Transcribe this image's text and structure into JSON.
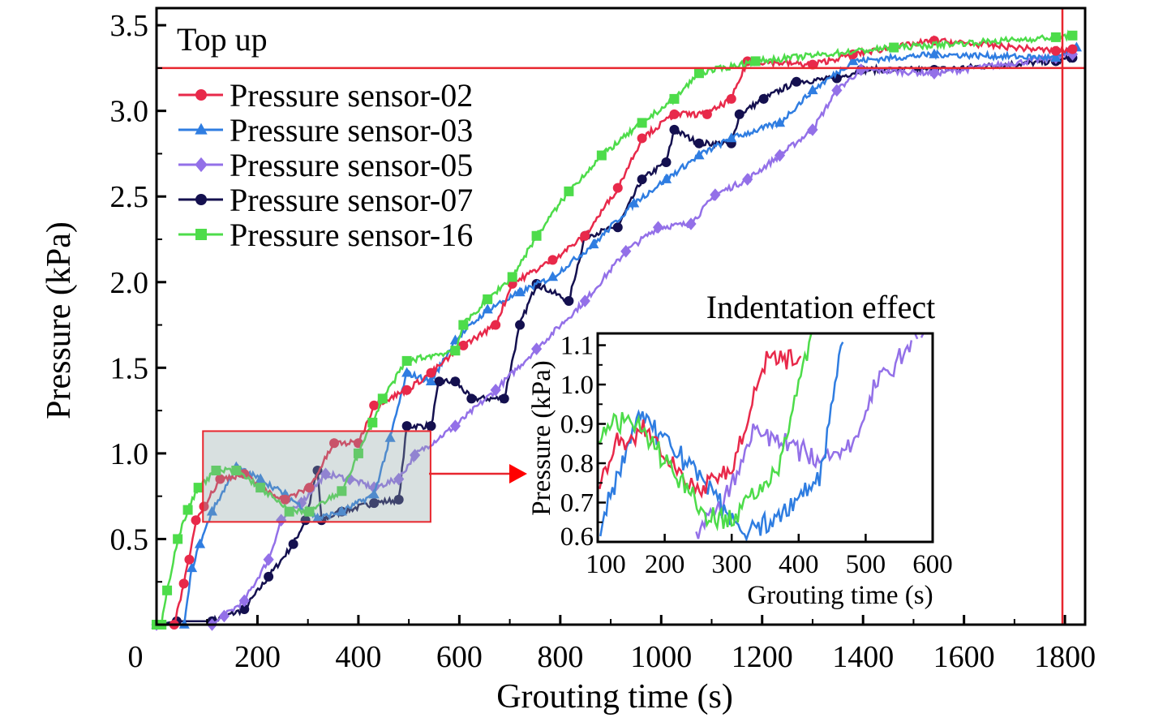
{
  "chart_data": {
    "type": "line",
    "xlabel": "Grouting time (s)",
    "ylabel": "Pressure (kPa)",
    "xlim": [
      0,
      1840
    ],
    "ylim": [
      0,
      3.6
    ],
    "xticks": [
      0,
      200,
      400,
      600,
      800,
      1000,
      1200,
      1400,
      1600,
      1800
    ],
    "yticks": [
      0.5,
      1.0,
      1.5,
      2.0,
      2.5,
      3.0,
      3.5
    ],
    "ytick_labels": [
      "0.5",
      "1.0",
      "1.5",
      "2.0",
      "2.5",
      "3.0",
      "3.5"
    ],
    "grid": false,
    "legend_placement": "top-left",
    "annotations": {
      "top_up_label": "Top up",
      "top_up_pressure": 3.25,
      "top_up_time": 1795,
      "reference_line_color": "#e8262e",
      "highlight_region": {
        "x": [
          92,
          543
        ],
        "y": [
          0.6,
          1.13
        ]
      }
    },
    "series": [
      {
        "name": "Pressure sensor-02",
        "color": "#e8294a",
        "marker": "circle",
        "x": [
          0,
          35,
          54,
          65,
          78,
          94,
          126,
          174,
          206,
          255,
          303,
          352,
          400,
          431,
          496,
          544,
          608,
          672,
          705,
          785,
          849,
          914,
          962,
          1026,
          1091,
          1139,
          1171,
          1300,
          1380,
          1541,
          1782,
          1815
        ],
        "y": [
          0,
          0,
          0.24,
          0.38,
          0.61,
          0.69,
          0.85,
          0.88,
          0.8,
          0.73,
          0.8,
          1.06,
          1.06,
          1.28,
          1.37,
          1.47,
          1.63,
          1.75,
          1.99,
          2.13,
          2.27,
          2.55,
          2.84,
          2.98,
          2.98,
          3.07,
          3.29,
          3.27,
          3.33,
          3.41,
          3.35,
          3.36
        ]
      },
      {
        "name": "Pressure sensor-03",
        "color": "#2f7de1",
        "marker": "triangle",
        "x": [
          0,
          55,
          70,
          86,
          110,
          158,
          206,
          255,
          319,
          367,
          431,
          463,
          496,
          544,
          592,
          656,
          720,
          785,
          866,
          946,
          1010,
          1075,
          1139,
          1235,
          1300,
          1380,
          1541,
          1782,
          1823
        ],
        "y": [
          0,
          0,
          0.33,
          0.47,
          0.66,
          0.92,
          0.85,
          0.76,
          0.62,
          0.66,
          0.76,
          1.09,
          1.47,
          1.42,
          1.66,
          1.84,
          1.94,
          2.03,
          2.22,
          2.46,
          2.6,
          2.74,
          2.84,
          2.93,
          3.12,
          3.29,
          3.33,
          3.31,
          3.37
        ]
      },
      {
        "name": "Pressure sensor-05",
        "color": "#9370e8",
        "marker": "diamond",
        "x": [
          0,
          110,
          134,
          174,
          222,
          247,
          287,
          335,
          383,
          431,
          480,
          512,
          592,
          672,
          753,
          849,
          930,
          994,
          1059,
          1107,
          1171,
          1235,
          1300,
          1348,
          1396,
          1541,
          1782,
          1815
        ],
        "y": [
          0,
          0,
          0.05,
          0.14,
          0.38,
          0.61,
          0.71,
          0.88,
          0.85,
          0.8,
          0.85,
          0.99,
          1.16,
          1.37,
          1.61,
          1.89,
          2.18,
          2.32,
          2.34,
          2.51,
          2.6,
          2.74,
          2.89,
          3.12,
          3.24,
          3.22,
          3.31,
          3.33
        ]
      },
      {
        "name": "Pressure sensor-07",
        "color": "#14104f",
        "marker": "circle",
        "x": [
          0,
          40,
          110,
          174,
          222,
          271,
          295,
          319,
          327,
          367,
          431,
          480,
          496,
          544,
          560,
          592,
          624,
          689,
          720,
          753,
          817,
          849,
          914,
          962,
          1010,
          1026,
          1075,
          1139,
          1155,
          1203,
          1268,
          1348,
          1396,
          1541,
          1782,
          1815
        ],
        "y": [
          0,
          0.02,
          0.02,
          0.09,
          0.28,
          0.47,
          0.61,
          0.9,
          0.61,
          0.66,
          0.71,
          0.73,
          1.16,
          1.16,
          1.42,
          1.42,
          1.32,
          1.32,
          1.75,
          1.99,
          1.89,
          2.27,
          2.32,
          2.6,
          2.7,
          2.89,
          2.81,
          2.81,
          2.98,
          3.07,
          3.17,
          3.19,
          3.24,
          3.24,
          3.29,
          3.31
        ]
      },
      {
        "name": "Pressure sensor-16",
        "color": "#4ddc4a",
        "marker": "square",
        "x": [
          0,
          10,
          21,
          42,
          62,
          83,
          118,
          158,
          206,
          263,
          303,
          367,
          400,
          428,
          448,
          496,
          592,
          608,
          656,
          705,
          753,
          817,
          882,
          962,
          1026,
          1075,
          1187,
          1461,
          1782,
          1815
        ],
        "y": [
          0,
          0,
          0.2,
          0.5,
          0.67,
          0.8,
          0.9,
          0.9,
          0.8,
          0.66,
          0.66,
          0.78,
          1.0,
          1.18,
          1.32,
          1.54,
          1.6,
          1.75,
          1.9,
          2.03,
          2.27,
          2.53,
          2.74,
          2.93,
          3.07,
          3.22,
          3.29,
          3.37,
          3.43,
          3.44
        ]
      }
    ],
    "inset": {
      "title": "Indentation effect",
      "xlabel": "Grouting time (s)",
      "ylabel": "Pressure (kPa)",
      "xlim": [
        100,
        600
      ],
      "ylim": [
        0.6,
        1.13
      ],
      "xticks": [
        100,
        200,
        300,
        400,
        500,
        600
      ],
      "yticks": [
        0.6,
        0.7,
        0.8,
        0.9,
        1.0,
        1.1
      ],
      "ytick_labels": [
        "0.6",
        "0.7",
        "0.8",
        "0.9",
        "1.0",
        "1.1"
      ],
      "series_shown": [
        "Pressure sensor-02",
        "Pressure sensor-03",
        "Pressure sensor-05",
        "Pressure sensor-16"
      ]
    }
  }
}
